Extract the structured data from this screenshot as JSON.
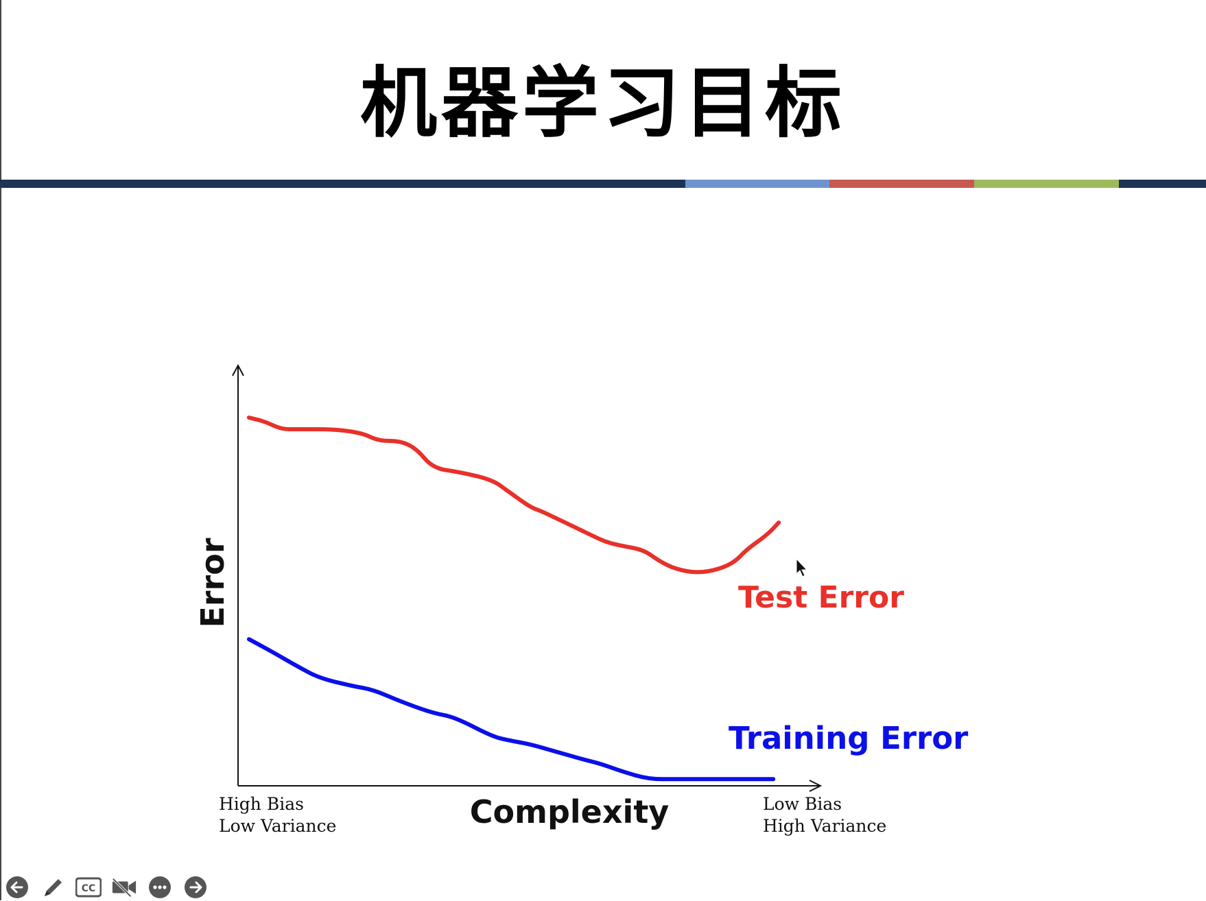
{
  "slide": {
    "title": "机器学习目标"
  },
  "title_bar": {
    "segments": [
      {
        "color": "#1f3453",
        "fraction": 0.568
      },
      {
        "color": "#6e95cf",
        "fraction": 0.12
      },
      {
        "color": "#c65a52",
        "fraction": 0.12
      },
      {
        "color": "#9dbb5c",
        "fraction": 0.12
      },
      {
        "color": "#1f3453",
        "fraction": 0.072
      }
    ]
  },
  "chart_data": {
    "type": "line",
    "title": "",
    "xlabel": "Complexity",
    "ylabel": "Error",
    "x_tick_left": [
      "High Bias",
      "Low Variance"
    ],
    "x_tick_right": [
      "Low Bias",
      "High Variance"
    ],
    "xlim": [
      0,
      100
    ],
    "ylim": [
      0,
      100
    ],
    "grid": false,
    "series": [
      {
        "name": "Test Error",
        "color": "#e8312a",
        "x": [
          1,
          4,
          7,
          10,
          17,
          22,
          25,
          29,
          32,
          35,
          40,
          46,
          49,
          53,
          55,
          58,
          61,
          64,
          67,
          70,
          74,
          77,
          80,
          84,
          88,
          91,
          93,
          97,
          99
        ],
        "y": [
          94,
          93,
          91,
          91,
          91,
          90,
          88,
          88,
          86,
          81,
          80,
          78,
          75,
          71,
          70,
          68,
          66,
          64,
          62,
          61,
          60,
          57,
          55,
          54,
          55,
          57,
          60,
          64,
          67
        ]
      },
      {
        "name": "Training Error",
        "color": "#0b10e8",
        "x": [
          1,
          5,
          10,
          14,
          20,
          24,
          29,
          35,
          39,
          46,
          49,
          53,
          58,
          63,
          66,
          70,
          75,
          80,
          85,
          90,
          94,
          98
        ],
        "y": [
          37,
          34,
          30,
          27,
          25,
          24,
          21,
          18,
          17,
          12,
          11,
          10,
          8,
          6,
          5,
          3,
          1,
          1,
          1,
          1,
          1,
          1
        ]
      }
    ]
  },
  "toolbar": {
    "icons": [
      "back-arrow-icon",
      "pen-icon",
      "captions-icon",
      "video-off-icon",
      "more-icon",
      "forward-arrow-icon"
    ],
    "captions_label": "CC"
  }
}
